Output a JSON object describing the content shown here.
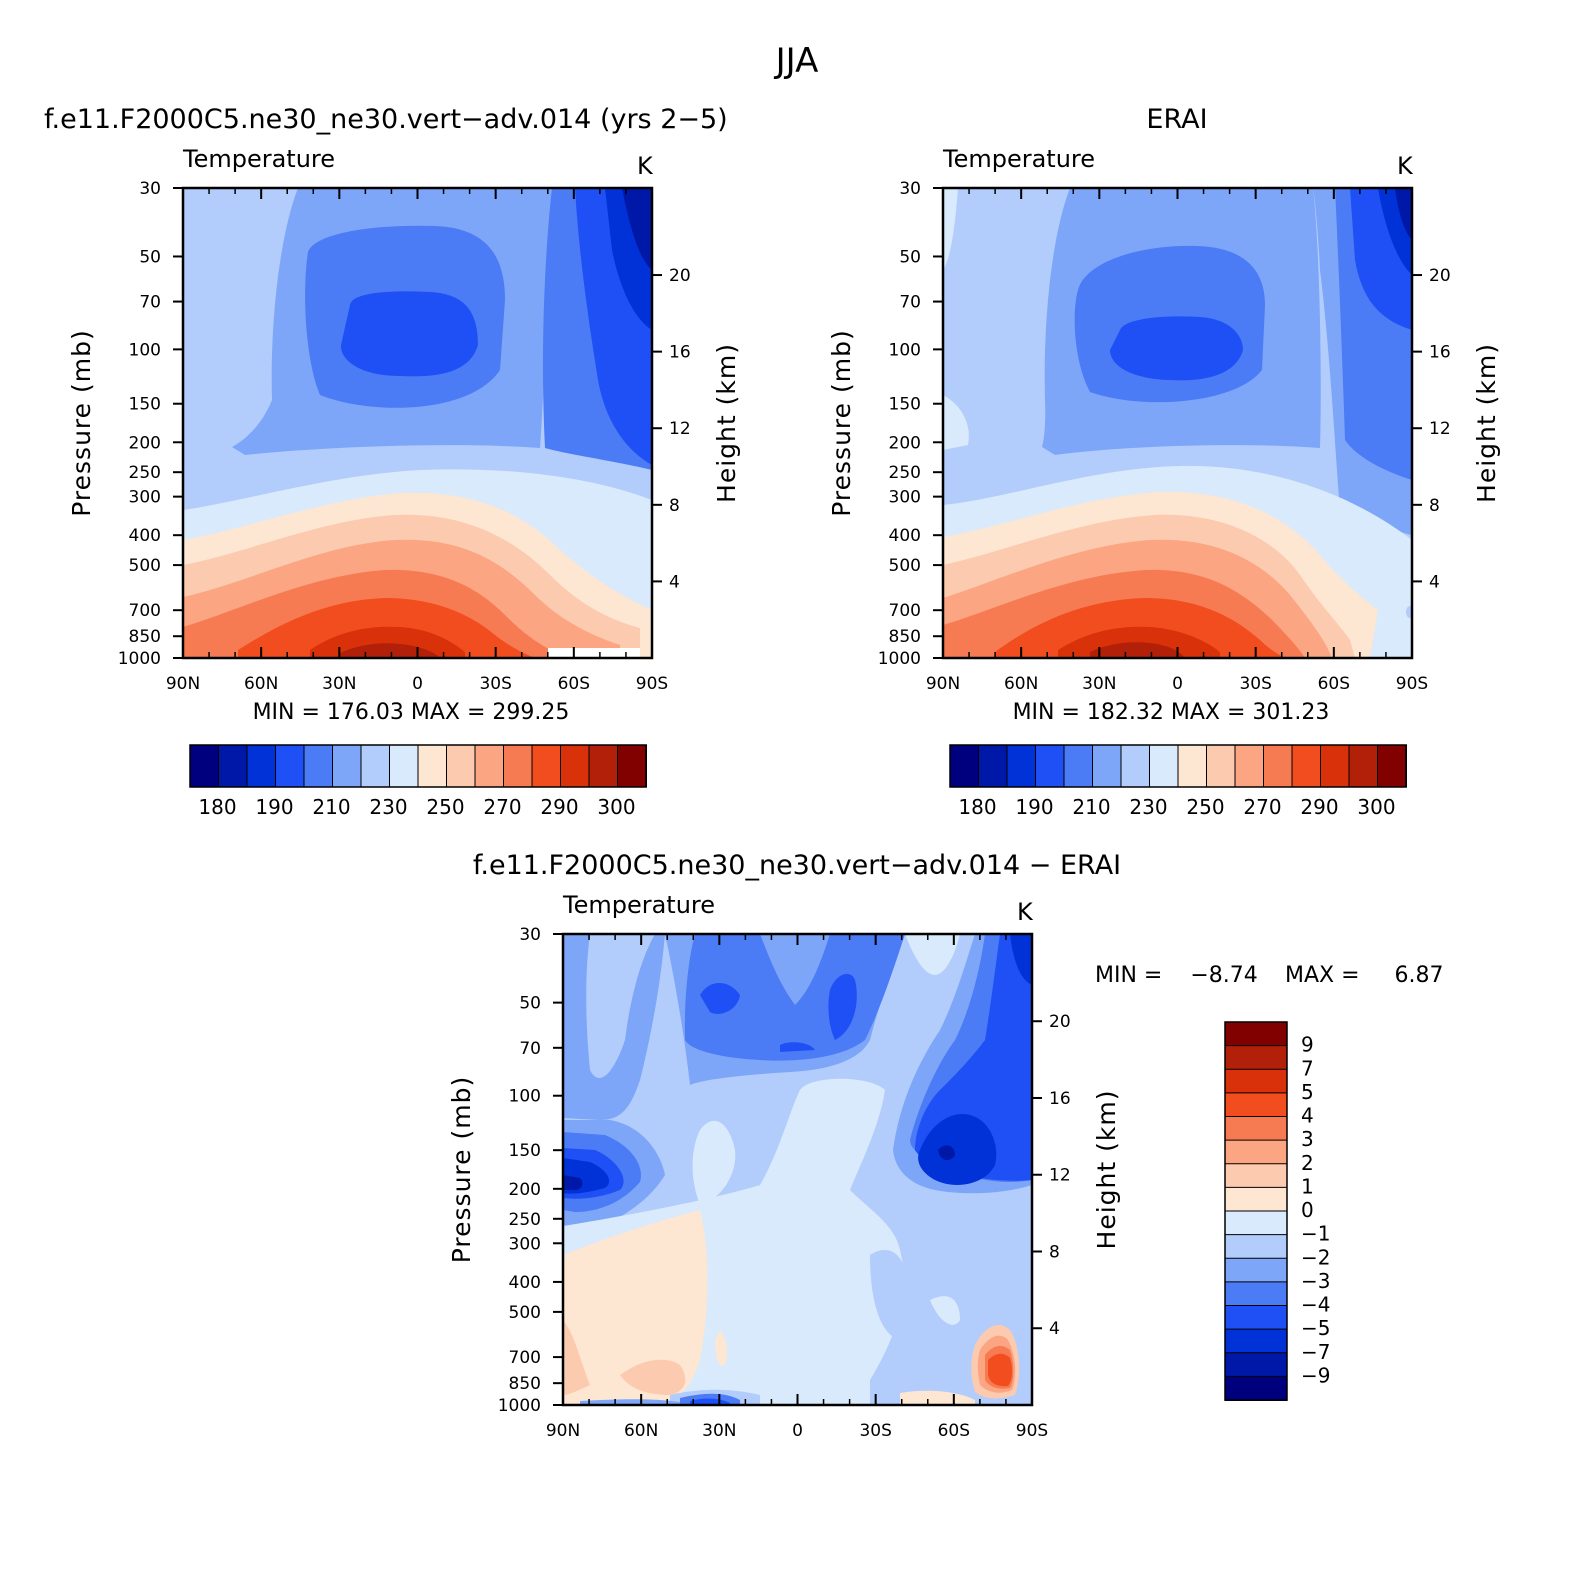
{
  "figure": {
    "season": "JJA",
    "panels": [
      {
        "title": "f.e11.F2000C5.ne30_ne30.vert−adv.014 (yrs 2−5)",
        "variable": "Temperature",
        "units": "K",
        "stats": "MIN = 176.03   MAX = 299.25"
      },
      {
        "title": "ERAI",
        "variable": "Temperature",
        "units": "K",
        "stats": "MIN = 182.32   MAX = 301.23"
      },
      {
        "title": "f.e11.F2000C5.ne30_ne30.vert−adv.014 − ERAI",
        "variable": "Temperature",
        "units": "K",
        "stats_min": "MIN =    −8.74",
        "stats_max": "MAX =     6.87"
      }
    ],
    "left_axis_label": "Pressure (mb)",
    "right_axis_label": "Height (km)"
  },
  "chart_data": [
    {
      "type": "heatmap",
      "plot": "contour",
      "title": "f.e11.F2000C5.ne30_ne30.vert−adv.014 (yrs 2−5)",
      "variable": "Temperature",
      "units": "K",
      "x_ticks": [
        "90N",
        "60N",
        "30N",
        "0",
        "30S",
        "60S",
        "90S"
      ],
      "y_ticks_pressure": [
        "30",
        "50",
        "70",
        "100",
        "150",
        "200",
        "250",
        "300",
        "400",
        "500",
        "700",
        "850",
        "1000"
      ],
      "y_ticks_height": [
        "20",
        "16",
        "12",
        "8",
        "4"
      ],
      "ylabel": "Pressure (mb)",
      "y2label": "Height (km)",
      "y_scale": "log",
      "min": 176.03,
      "max": 299.25,
      "colorbar": {
        "levels": [
          180,
          185,
          190,
          200,
          210,
          220,
          230,
          240,
          250,
          260,
          270,
          280,
          290,
          295,
          300
        ],
        "labels": [
          "180",
          "190",
          "210",
          "230",
          "250",
          "270",
          "290",
          "300"
        ],
        "colors": [
          "#00007f",
          "#0018a8",
          "#0032d8",
          "#1e50f5",
          "#4b7cf5",
          "#7ea6f8",
          "#b2ccfb",
          "#d8eafb",
          "#fde6d2",
          "#fccaae",
          "#fba583",
          "#f77b52",
          "#f24d1f",
          "#d93109",
          "#b2200a",
          "#810000"
        ]
      }
    },
    {
      "type": "heatmap",
      "plot": "contour",
      "title": "ERAI",
      "variable": "Temperature",
      "units": "K",
      "x_ticks": [
        "90N",
        "60N",
        "30N",
        "0",
        "30S",
        "60S",
        "90S"
      ],
      "y_ticks_pressure": [
        "30",
        "50",
        "70",
        "100",
        "150",
        "200",
        "250",
        "300",
        "400",
        "500",
        "700",
        "850",
        "1000"
      ],
      "y_ticks_height": [
        "20",
        "16",
        "12",
        "8",
        "4"
      ],
      "ylabel": "Pressure (mb)",
      "y2label": "Height (km)",
      "y_scale": "log",
      "min": 182.32,
      "max": 301.23,
      "colorbar": {
        "levels": [
          180,
          185,
          190,
          200,
          210,
          220,
          230,
          240,
          250,
          260,
          270,
          280,
          290,
          295,
          300
        ],
        "labels": [
          "180",
          "190",
          "210",
          "230",
          "250",
          "270",
          "290",
          "300"
        ],
        "colors": [
          "#00007f",
          "#0018a8",
          "#0032d8",
          "#1e50f5",
          "#4b7cf5",
          "#7ea6f8",
          "#b2ccfb",
          "#d8eafb",
          "#fde6d2",
          "#fccaae",
          "#fba583",
          "#f77b52",
          "#f24d1f",
          "#d93109",
          "#b2200a",
          "#810000"
        ]
      }
    },
    {
      "type": "heatmap",
      "plot": "contour",
      "title": "f.e11.F2000C5.ne30_ne30.vert−adv.014 − ERAI",
      "variable": "Temperature",
      "units": "K",
      "x_ticks": [
        "90N",
        "60N",
        "30N",
        "0",
        "30S",
        "60S",
        "90S"
      ],
      "y_ticks_pressure": [
        "30",
        "50",
        "70",
        "100",
        "150",
        "200",
        "250",
        "300",
        "400",
        "500",
        "700",
        "850",
        "1000"
      ],
      "y_ticks_height": [
        "20",
        "16",
        "12",
        "8",
        "4"
      ],
      "ylabel": "Pressure (mb)",
      "y2label": "Height (km)",
      "y_scale": "log",
      "min": -8.74,
      "max": 6.87,
      "colorbar": {
        "orientation": "vertical",
        "labels": [
          "9",
          "7",
          "5",
          "4",
          "3",
          "2",
          "1",
          "0",
          "−1",
          "−2",
          "−3",
          "−4",
          "−5",
          "−7",
          "−9"
        ],
        "colors": [
          "#810000",
          "#b2200a",
          "#d93109",
          "#f24d1f",
          "#f77b52",
          "#fba583",
          "#fccaae",
          "#fde6d2",
          "#d8eafb",
          "#b2ccfb",
          "#7ea6f8",
          "#4b7cf5",
          "#1e50f5",
          "#0032d8",
          "#0018a8",
          "#00007f"
        ]
      }
    }
  ]
}
